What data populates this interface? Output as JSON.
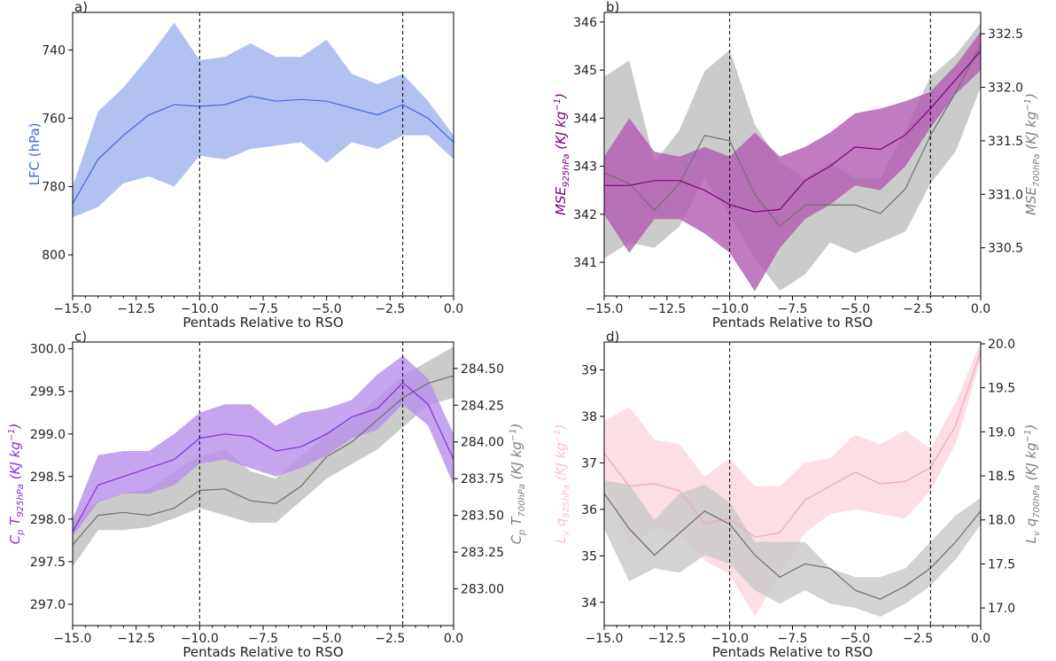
{
  "chart_data": [
    {
      "panel": "a)",
      "type": "area",
      "xlabel": "Pentads Relative to RSO",
      "xlim": [
        -15,
        0
      ],
      "xticks": [
        -15.0,
        -12.5,
        -10.0,
        -7.5,
        -5.0,
        -2.5,
        0.0
      ],
      "xtick_labels": [
        "−15.0",
        "−12.5",
        "−10.0",
        "−7.5",
        "−5.0",
        "−2.5",
        "0.0"
      ],
      "vlines": [
        -10,
        -2
      ],
      "x": [
        -15,
        -14,
        -13,
        -12,
        -11,
        -10,
        -9,
        -8,
        -7,
        -6,
        -5,
        -4,
        -3,
        -2,
        -1,
        0
      ],
      "left_axis": {
        "label": "LFC (hPa)",
        "color": "#4169e1",
        "inverted": true,
        "ylim": [
          812,
          729
        ],
        "ticks": [
          740,
          760,
          780,
          800
        ],
        "tick_labels": [
          "740",
          "760",
          "780",
          "800"
        ]
      },
      "series": [
        {
          "axis": "left",
          "color": "#4169e1",
          "fill": "#aebfef",
          "mean": [
            785,
            772,
            765,
            759,
            756,
            756.5,
            756,
            753.5,
            755,
            754.5,
            755,
            757,
            759,
            756,
            760,
            767
          ],
          "upper": [
            789,
            786,
            779,
            777,
            780,
            771,
            772,
            769,
            768,
            767,
            773,
            767,
            769,
            765,
            765,
            772
          ],
          "lower": [
            780,
            758,
            751,
            742,
            732,
            743,
            742,
            738,
            742,
            742,
            737,
            747,
            750,
            747,
            755,
            765
          ]
        }
      ]
    },
    {
      "panel": "b)",
      "type": "area",
      "xlabel": "Pentads Relative to RSO",
      "xlim": [
        -15,
        0
      ],
      "xticks": [
        -15.0,
        -12.5,
        -10.0,
        -7.5,
        -5.0,
        -2.5,
        0.0
      ],
      "xtick_labels": [
        "−15.0",
        "−12.5",
        "−10.0",
        "−7.5",
        "−5.0",
        "−2.5",
        "0.0"
      ],
      "vlines": [
        -10,
        -2
      ],
      "x": [
        -15,
        -14,
        -13,
        -12,
        -11,
        -10,
        -9,
        -8,
        -7,
        -6,
        -5,
        -4,
        -3,
        -2,
        -1,
        0
      ],
      "left_axis": {
        "label_main": "MSE",
        "label_sub": "925hPa",
        "label_unit": "(KJ kg",
        "label_sup": "−1",
        "label_close": ")",
        "color": "#800080",
        "ylim": [
          340.3,
          346.2
        ],
        "ticks": [
          341,
          342,
          343,
          344,
          345,
          346
        ],
        "tick_labels": [
          "341",
          "342",
          "343",
          "344",
          "345",
          "346"
        ]
      },
      "right_axis": {
        "label_main": "MSE",
        "label_sub": "700hPa",
        "label_unit": "(KJ kg",
        "label_sup": "−1",
        "label_close": ")",
        "color": "#808080",
        "ylim": [
          330.05,
          332.7
        ],
        "ticks": [
          330.5,
          331.0,
          331.5,
          332.0,
          332.5
        ],
        "tick_labels": [
          "330.5",
          "331.0",
          "331.5",
          "332.0",
          "332.5"
        ]
      },
      "series": [
        {
          "axis": "right",
          "color": "#707070",
          "fill": "#c8c8c8",
          "mean": [
            331.2,
            331.1,
            330.85,
            331.1,
            331.55,
            331.5,
            331.0,
            330.7,
            330.9,
            330.9,
            330.9,
            330.82,
            331.05,
            331.55,
            331.95,
            332.4
          ],
          "upper": [
            332.1,
            332.25,
            331.3,
            331.6,
            332.15,
            332.35,
            331.65,
            331.3,
            331.15,
            331.3,
            331.15,
            331.15,
            331.6,
            332.1,
            332.3,
            332.6
          ],
          "lower": [
            330.4,
            330.55,
            330.5,
            330.7,
            331.15,
            330.8,
            330.4,
            330.1,
            330.25,
            330.55,
            330.45,
            330.55,
            330.65,
            331.1,
            331.4,
            332.0
          ]
        },
        {
          "axis": "left",
          "color": "#800080",
          "fill": "#b25ab2",
          "mean": [
            342.6,
            342.6,
            342.7,
            342.7,
            342.5,
            342.2,
            342.05,
            342.1,
            342.7,
            343.0,
            343.4,
            343.35,
            343.65,
            344.2,
            344.8,
            345.4
          ],
          "upper": [
            343.2,
            344.0,
            343.3,
            343.2,
            343.4,
            343.2,
            343.7,
            343.2,
            343.4,
            343.7,
            344.1,
            344.2,
            344.35,
            344.55,
            345.1,
            345.8
          ],
          "lower": [
            342.0,
            341.2,
            341.9,
            341.9,
            341.6,
            341.2,
            340.4,
            341.3,
            341.9,
            342.2,
            342.6,
            342.5,
            343.0,
            343.8,
            344.5,
            345.0
          ]
        }
      ]
    },
    {
      "panel": "c)",
      "type": "area",
      "xlabel": "Pentads Relative to RSO",
      "xlim": [
        -15,
        0
      ],
      "xticks": [
        -15.0,
        -12.5,
        -10.0,
        -7.5,
        -5.0,
        -2.5,
        0.0
      ],
      "xtick_labels": [
        "−15.0",
        "−12.5",
        "−10.0",
        "−7.5",
        "−5.0",
        "−2.5",
        "0.0"
      ],
      "vlines": [
        -10,
        -2
      ],
      "x": [
        -15,
        -14,
        -13,
        -12,
        -11,
        -10,
        -9,
        -8,
        -7,
        -6,
        -5,
        -4,
        -3,
        -2,
        -1,
        0
      ],
      "left_axis": {
        "label_pre": "C",
        "label_pre_sub": "p",
        "label_main": " T",
        "label_sub": "925hPa",
        "label_unit": "(KJ kg",
        "label_sup": "−1",
        "label_close": ")",
        "color": "#8a2be2",
        "ylim": [
          296.75,
          300.08
        ],
        "ticks": [
          297.0,
          297.5,
          298.0,
          298.5,
          299.0,
          299.5,
          300.0
        ],
        "tick_labels": [
          "297.0",
          "297.5",
          "298.0",
          "298.5",
          "299.0",
          "299.5",
          "300.0"
        ]
      },
      "right_axis": {
        "label_pre": "C",
        "label_pre_sub": "p",
        "label_main": " T",
        "label_sub": "700hPa",
        "label_unit": "(KJ kg",
        "label_sup": "−1",
        "label_close": ")",
        "color": "#808080",
        "ylim": [
          282.75,
          284.68
        ],
        "ticks": [
          283.0,
          283.25,
          283.5,
          283.75,
          284.0,
          284.25,
          284.5
        ],
        "tick_labels": [
          "283.00",
          "283.25",
          "283.50",
          "283.75",
          "284.00",
          "284.25",
          "284.50"
        ]
      },
      "series": [
        {
          "axis": "right",
          "color": "#707070",
          "fill": "#c8c8c8",
          "mean": [
            283.3,
            283.5,
            283.52,
            283.5,
            283.55,
            283.67,
            283.68,
            283.6,
            283.58,
            283.7,
            283.9,
            284.0,
            284.15,
            284.3,
            284.4,
            284.45
          ],
          "upper": [
            283.45,
            283.6,
            283.65,
            283.68,
            283.8,
            283.9,
            283.95,
            283.8,
            283.75,
            283.9,
            284.05,
            284.15,
            284.3,
            284.45,
            284.55,
            284.65
          ],
          "lower": [
            283.15,
            283.4,
            283.4,
            283.42,
            283.48,
            283.55,
            283.5,
            283.45,
            283.45,
            283.6,
            283.75,
            283.85,
            283.95,
            284.1,
            284.25,
            284.3
          ]
        },
        {
          "axis": "left",
          "color": "#8a2be2",
          "fill": "#b68ee9",
          "mean": [
            297.85,
            298.4,
            298.5,
            298.6,
            298.7,
            298.95,
            299.0,
            298.97,
            298.8,
            298.85,
            299.0,
            299.2,
            299.3,
            299.6,
            299.35,
            298.7
          ],
          "upper": [
            298.0,
            298.75,
            298.8,
            298.8,
            299.0,
            299.25,
            299.35,
            299.35,
            299.1,
            299.25,
            299.3,
            299.4,
            299.7,
            299.92,
            299.65,
            299.0
          ],
          "lower": [
            297.8,
            298.2,
            298.3,
            298.3,
            298.4,
            298.65,
            298.7,
            298.6,
            298.5,
            298.6,
            298.75,
            298.95,
            299.05,
            299.35,
            299.1,
            298.4
          ]
        }
      ]
    },
    {
      "panel": "d)",
      "type": "area",
      "xlabel": "Pentads Relative to RSO",
      "xlim": [
        -15,
        0
      ],
      "xticks": [
        -15.0,
        -12.5,
        -10.0,
        -7.5,
        -5.0,
        -2.5,
        0.0
      ],
      "xtick_labels": [
        "−15.0",
        "−12.5",
        "−10.0",
        "−7.5",
        "−5.0",
        "−2.5",
        "0.0"
      ],
      "vlines": [
        -10,
        -2
      ],
      "x": [
        -15,
        -14,
        -13,
        -12,
        -11,
        -10,
        -9,
        -8,
        -7,
        -6,
        -5,
        -4,
        -3,
        -2,
        -1,
        0
      ],
      "left_axis": {
        "label_pre": "L",
        "label_pre_sub": "v",
        "label_main": " q",
        "label_sub": "925hPa",
        "label_unit": "(KJ kg",
        "label_sup": "−1",
        "label_close": ")",
        "color": "#ffc0cb",
        "ylim": [
          33.5,
          39.6
        ],
        "ticks": [
          34,
          35,
          36,
          37,
          38,
          39
        ],
        "tick_labels": [
          "34",
          "35",
          "36",
          "37",
          "38",
          "39"
        ]
      },
      "right_axis": {
        "label_pre": "L",
        "label_pre_sub": "v",
        "label_main": " q",
        "label_sub": "700hPa",
        "label_unit": "(KJ kg",
        "label_sup": "−1",
        "label_close": ")",
        "color": "#808080",
        "ylim": [
          16.8,
          20.02
        ],
        "ticks": [
          17.0,
          17.5,
          18.0,
          18.5,
          19.0,
          19.5,
          20.0
        ],
        "tick_labels": [
          "17.0",
          "17.5",
          "18.0",
          "18.5",
          "19.0",
          "19.5",
          "20.0"
        ]
      },
      "series": [
        {
          "axis": "left",
          "color": "#f4a6b8",
          "fill": "#fcdce3",
          "mean": [
            37.2,
            36.5,
            36.55,
            36.4,
            35.7,
            35.8,
            35.4,
            35.5,
            36.2,
            36.5,
            36.8,
            36.55,
            36.6,
            36.9,
            37.8,
            39.4
          ],
          "upper": [
            37.9,
            38.2,
            37.5,
            37.4,
            36.7,
            37.1,
            36.5,
            36.5,
            37.0,
            37.1,
            37.6,
            37.4,
            37.7,
            37.3,
            38.3,
            39.6
          ],
          "lower": [
            36.6,
            35.2,
            35.6,
            35.5,
            34.9,
            34.6,
            33.7,
            34.6,
            35.5,
            35.9,
            36.0,
            35.9,
            35.8,
            36.4,
            37.4,
            39.2
          ]
        },
        {
          "axis": "right",
          "color": "#707070",
          "fill": "#c8c8c8",
          "mean": [
            18.3,
            17.9,
            17.6,
            17.85,
            18.1,
            17.95,
            17.6,
            17.35,
            17.5,
            17.45,
            17.2,
            17.1,
            17.25,
            17.45,
            17.75,
            18.1
          ],
          "upper": [
            18.45,
            18.4,
            18.0,
            18.3,
            18.4,
            18.2,
            17.75,
            17.75,
            17.75,
            17.45,
            17.35,
            17.35,
            17.45,
            17.75,
            18.05,
            18.25
          ],
          "lower": [
            17.9,
            17.3,
            17.45,
            17.4,
            17.6,
            17.5,
            17.2,
            17.05,
            17.2,
            17.05,
            17.0,
            16.9,
            17.05,
            17.25,
            17.55,
            17.95
          ]
        }
      ]
    }
  ]
}
